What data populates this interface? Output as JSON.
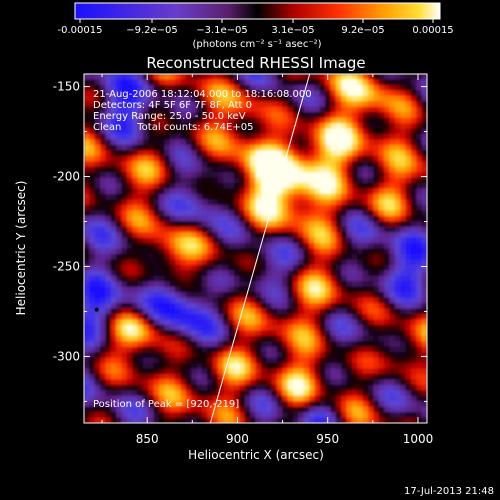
{
  "colorbar": {
    "ticks": [
      "-0.00015",
      "−9.2e−05",
      "−3.1e−05",
      "3.1e−05",
      "9.2e−05",
      "0.00015"
    ],
    "unit_label": "(photons cm⁻² s⁻¹ asec⁻²)",
    "range": [
      -0.00015,
      0.00015
    ]
  },
  "chart_data": {
    "type": "heatmap",
    "title": "Reconstructed RHESSI Image",
    "xlabel": "Heliocentric X (arcsec)",
    "ylabel": "Heliocentric Y (arcsec)",
    "xlim": [
      815,
      1005
    ],
    "ylim": [
      -337,
      -143
    ],
    "xticks": [
      850,
      900,
      950,
      1000
    ],
    "yticks": [
      -150,
      -200,
      -250,
      -300
    ],
    "colormap": "blue-purple-black-red-orange-yellow-white",
    "limb_line": [
      [
        885,
        -337
      ],
      [
        940,
        -143
      ]
    ],
    "source_marker": [
      822,
      -274
    ]
  },
  "annotations": {
    "time_range": "21-Aug-2006 18:12:04.000 to 18:16:08.000",
    "detectors": "Detectors: 4F 5F 6F 7F 8F, Att 0",
    "energy": "Energy Range: 25.0 - 50.0 keV",
    "clean": "Clean     Total counts: 6.74E+05",
    "position": "Position of Peak = [920,-219]"
  },
  "footer": {
    "timestamp": "17-Jul-2013 21:48"
  },
  "colors": {
    "background": "#000000",
    "text": "#ffffff"
  }
}
